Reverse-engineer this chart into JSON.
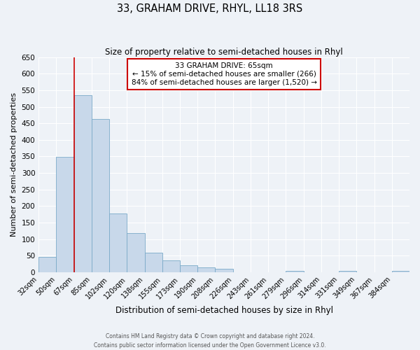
{
  "title": "33, GRAHAM DRIVE, RHYL, LL18 3RS",
  "subtitle": "Size of property relative to semi-detached houses in Rhyl",
  "xlabel": "Distribution of semi-detached houses by size in Rhyl",
  "ylabel": "Number of semi-detached properties",
  "bin_labels": [
    "32sqm",
    "50sqm",
    "67sqm",
    "85sqm",
    "102sqm",
    "120sqm",
    "138sqm",
    "155sqm",
    "173sqm",
    "190sqm",
    "208sqm",
    "226sqm",
    "243sqm",
    "261sqm",
    "279sqm",
    "296sqm",
    "314sqm",
    "331sqm",
    "349sqm",
    "367sqm",
    "384sqm"
  ],
  "bar_heights": [
    46,
    348,
    535,
    464,
    178,
    118,
    60,
    35,
    21,
    15,
    10,
    0,
    0,
    0,
    5,
    0,
    0,
    4,
    0,
    0,
    5
  ],
  "bar_color": "#c8d8ea",
  "bar_edge_color": "#7aaac8",
  "property_line_x": 2,
  "annotation_title": "33 GRAHAM DRIVE: 65sqm",
  "annotation_line1": "← 15% of semi-detached houses are smaller (266)",
  "annotation_line2": "84% of semi-detached houses are larger (1,520) →",
  "annotation_box_color": "#ffffff",
  "annotation_box_edge": "#cc0000",
  "vline_color": "#cc0000",
  "ylim": [
    0,
    650
  ],
  "yticks": [
    0,
    50,
    100,
    150,
    200,
    250,
    300,
    350,
    400,
    450,
    500,
    550,
    600,
    650
  ],
  "bg_color": "#eef2f7",
  "grid_color": "#ffffff",
  "footer_line1": "Contains HM Land Registry data © Crown copyright and database right 2024.",
  "footer_line2": "Contains public sector information licensed under the Open Government Licence v3.0."
}
